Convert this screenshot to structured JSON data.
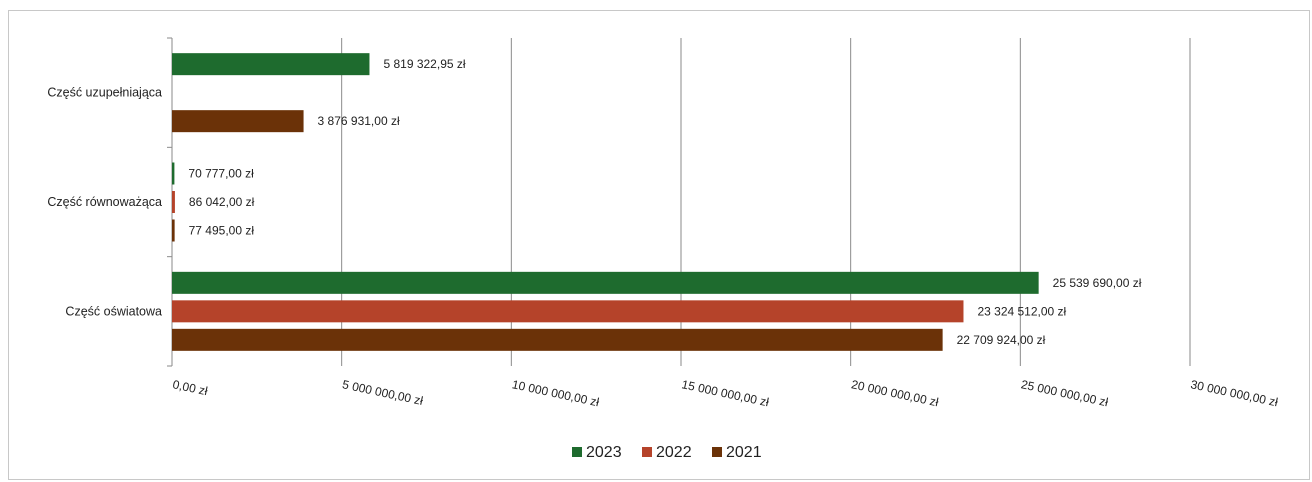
{
  "chart_data": {
    "type": "bar",
    "orientation": "horizontal",
    "categories": [
      "Część uzupełniająca",
      "Część równoważąca",
      "Część oświatowa"
    ],
    "series": [
      {
        "name": "2023",
        "color": "#1e6b2e",
        "values": [
          5819322.95,
          70777.0,
          25539690.0
        ],
        "labels": [
          "5 819 322,95 zł",
          "70 777,00 zł",
          "25 539 690,00 zł"
        ]
      },
      {
        "name": "2022",
        "color": "#b5432a",
        "values": [
          null,
          86042.0,
          23324512.0
        ],
        "labels": [
          null,
          "86 042,00 zł",
          "23 324 512,00 zł"
        ]
      },
      {
        "name": "2021",
        "color": "#6b3208",
        "values": [
          3876931.0,
          77495.0,
          22709924.0
        ],
        "labels": [
          "3 876 931,00 zł",
          "77 495,00 zł",
          "22 709 924,00 zł"
        ]
      }
    ],
    "xlim": [
      0,
      30000000
    ],
    "xticks": [
      0,
      5000000,
      10000000,
      15000000,
      20000000,
      25000000,
      30000000
    ],
    "xtick_labels": [
      "0,00 zł",
      "5 000 000,00 zł",
      "10 000 000,00 zł",
      "15 000 000,00 zł",
      "20 000 000,00 zł",
      "25 000 000,00 zł",
      "30 000 000,00 zł"
    ],
    "grid": "vertical",
    "legend_position": "bottom",
    "legend": [
      "2023",
      "2022",
      "2021"
    ],
    "title": "",
    "xlabel": "",
    "ylabel": ""
  }
}
